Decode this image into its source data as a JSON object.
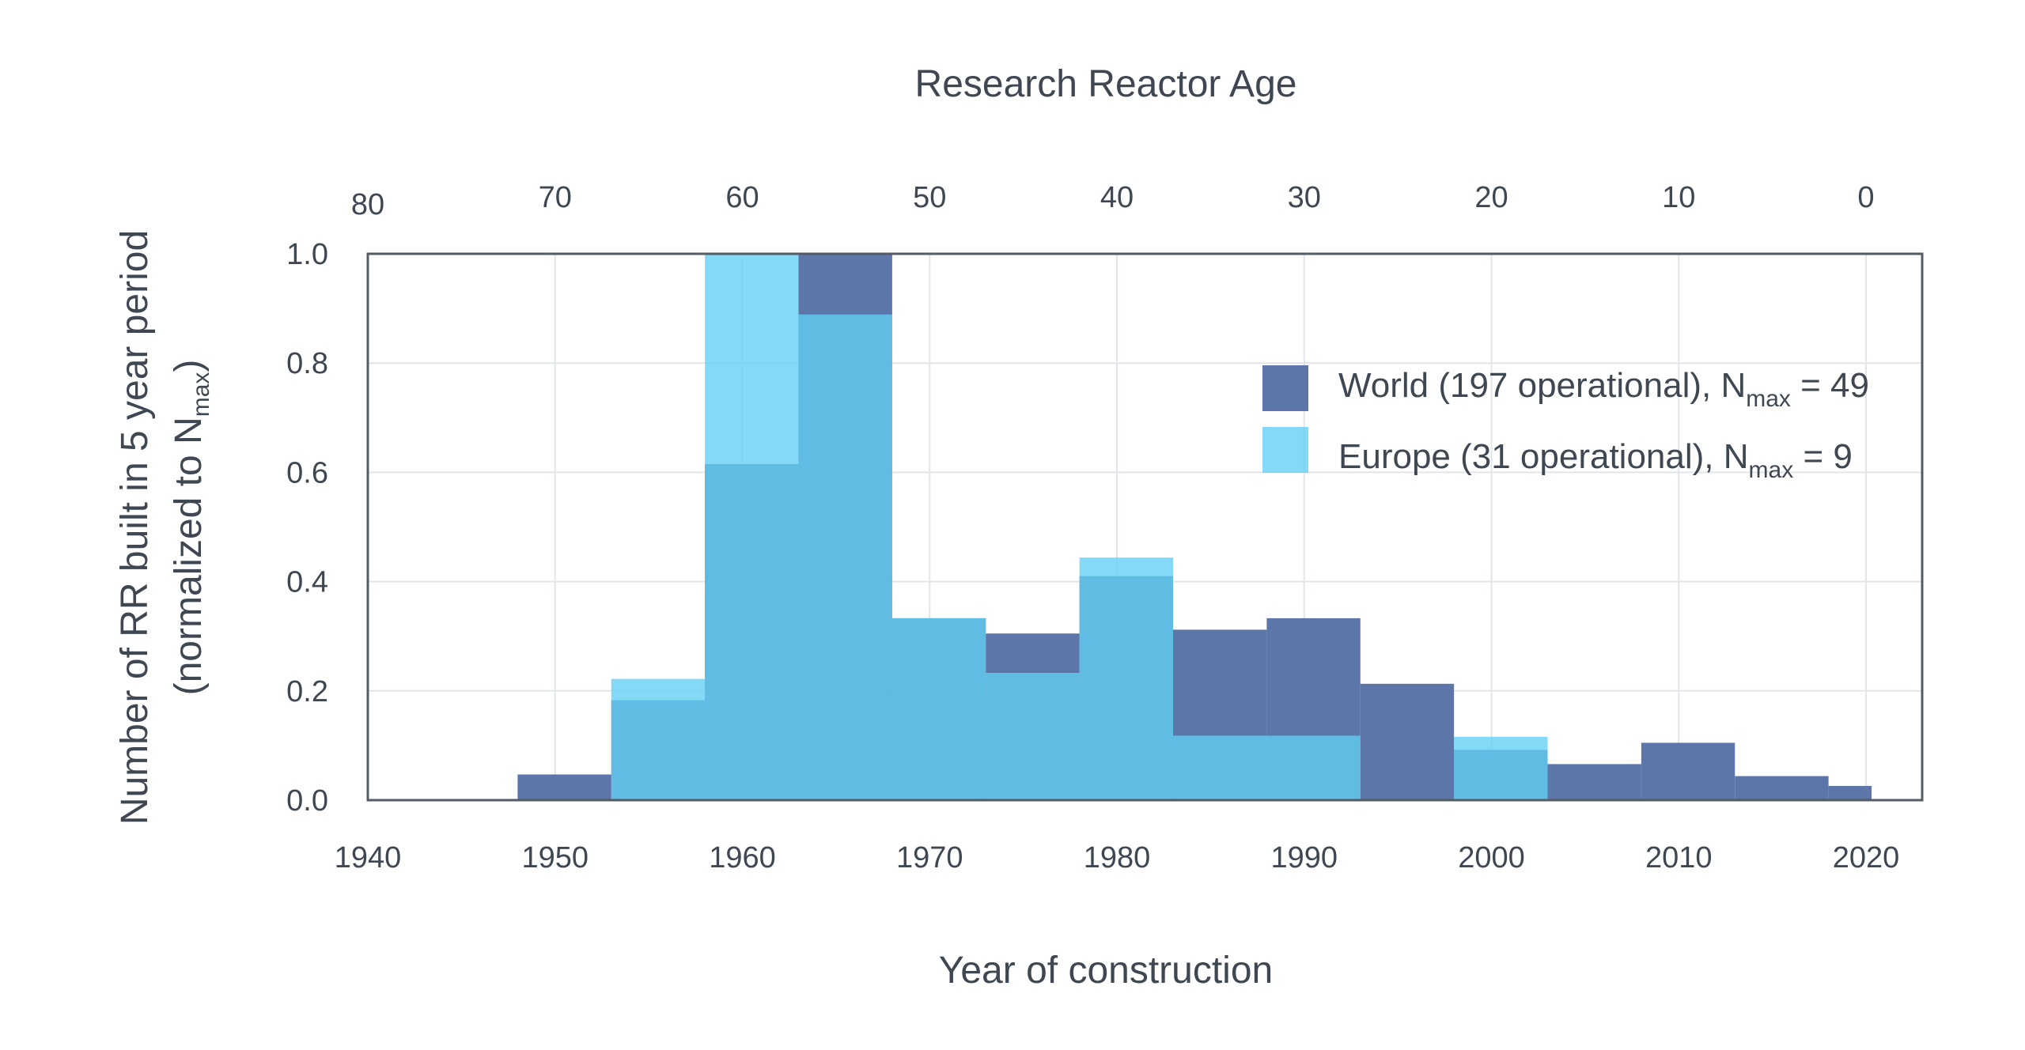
{
  "chart_data": {
    "type": "bar",
    "histogram": true,
    "bin_width_years": 5,
    "xlabel": "Year of construction",
    "top_axis_label": "Research Reactor Age",
    "ylabel_line1": "Number of RR built in 5 year period",
    "ylabel_line2_prefix": "(normalized to N",
    "ylabel_line2_sub": "max",
    "ylabel_line2_suffix": ")",
    "xlim": [
      1940,
      2023
    ],
    "ylim": [
      0,
      1.0
    ],
    "grid": true,
    "legend_position": "top-right",
    "x_ticks": [
      "1940",
      "1950",
      "1960",
      "1970",
      "1980",
      "1990",
      "2000",
      "2010",
      "2020"
    ],
    "y_ticks": [
      "0.0",
      "0.2",
      "0.4",
      "0.6",
      "0.8",
      "1.0"
    ],
    "top_ticks": [
      "80",
      "70",
      "60",
      "50",
      "40",
      "30",
      "20",
      "10",
      "0"
    ],
    "series": [
      {
        "name_main": "World (197 operational), N",
        "name_sub": "max",
        "name_tail": " = 49",
        "color": "#5c76aa",
        "bins": [
          {
            "start": 1948,
            "end": 1953,
            "value": 0.047
          },
          {
            "start": 1953,
            "end": 1958,
            "value": 0.183
          },
          {
            "start": 1958,
            "end": 1963,
            "value": 0.615
          },
          {
            "start": 1963,
            "end": 1968,
            "value": 1.0
          },
          {
            "start": 1968,
            "end": 1973,
            "value": 0.333
          },
          {
            "start": 1973,
            "end": 1978,
            "value": 0.305
          },
          {
            "start": 1978,
            "end": 1983,
            "value": 0.41
          },
          {
            "start": 1983,
            "end": 1988,
            "value": 0.312
          },
          {
            "start": 1988,
            "end": 1993,
            "value": 0.333
          },
          {
            "start": 1993,
            "end": 1998,
            "value": 0.213
          },
          {
            "start": 1998,
            "end": 2003,
            "value": 0.092
          },
          {
            "start": 2003,
            "end": 2008,
            "value": 0.066
          },
          {
            "start": 2008,
            "end": 2013,
            "value": 0.105
          },
          {
            "start": 2013,
            "end": 2018,
            "value": 0.044
          },
          {
            "start": 2018,
            "end": 2020.3,
            "value": 0.026
          }
        ]
      },
      {
        "name_main": "Europe (31 operational), N",
        "name_sub": "max",
        "name_tail": " = 9",
        "color": "#62cff4",
        "bins": [
          {
            "start": 1953,
            "end": 1958,
            "value": 0.222
          },
          {
            "start": 1958,
            "end": 1963,
            "value": 1.0
          },
          {
            "start": 1963,
            "end": 1968,
            "value": 0.889
          },
          {
            "start": 1968,
            "end": 1973,
            "value": 0.333
          },
          {
            "start": 1973,
            "end": 1978,
            "value": 0.233
          },
          {
            "start": 1978,
            "end": 1983,
            "value": 0.444
          },
          {
            "start": 1983,
            "end": 1993,
            "value": 0.118
          },
          {
            "start": 1998,
            "end": 2003,
            "value": 0.116
          }
        ]
      }
    ]
  }
}
